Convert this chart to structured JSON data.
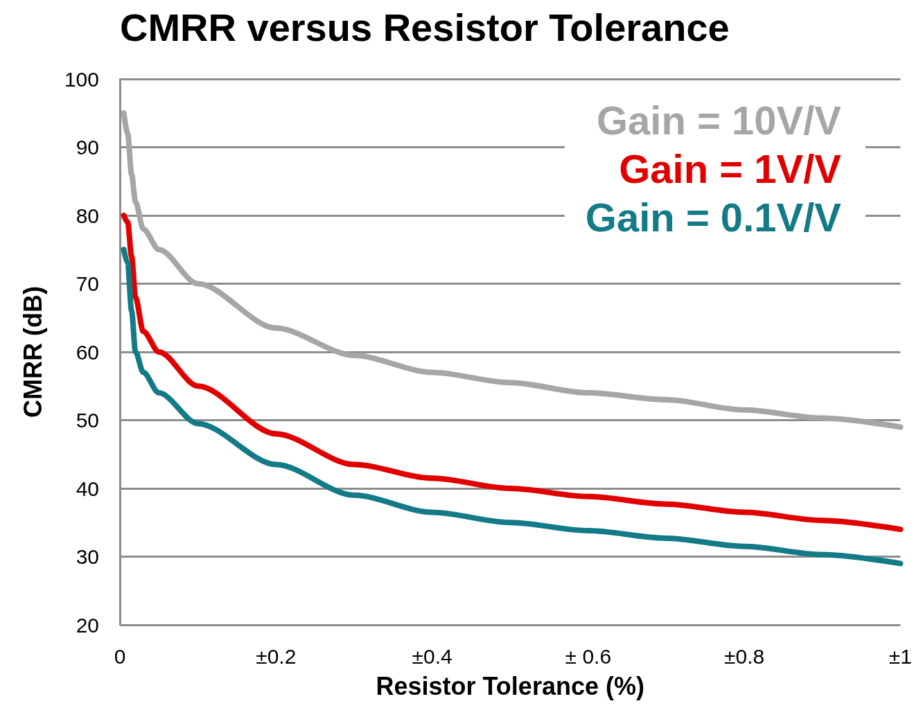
{
  "chart_data": {
    "type": "line",
    "title": "CMRR versus Resistor Tolerance",
    "xlabel": "Resistor Tolerance (%)",
    "ylabel": "CMRR (dB)",
    "xlim": [
      0,
      1
    ],
    "xticks": [
      0,
      {
        "value": 0.2,
        "label": "±0.2"
      },
      {
        "value": 0.4,
        "label": "±0.4"
      },
      {
        "value": 0.6,
        "label": "± 0.6"
      },
      {
        "value": 0.8,
        "label": "±0.8"
      },
      {
        "value": 1,
        "label": "±1"
      }
    ],
    "ylim": [
      20,
      100
    ],
    "yticks": [
      20,
      30,
      40,
      50,
      60,
      70,
      80,
      90,
      100
    ],
    "grid": "y",
    "legend": "top right",
    "marker": "none",
    "line_style": "solid",
    "series": [
      {
        "name": "Gain = 10V/V",
        "color": "#a6a6a6",
        "x": [
          0.005,
          0.01,
          0.015,
          0.02,
          0.03,
          0.05,
          0.1,
          0.2,
          0.3,
          0.4,
          0.5,
          0.6,
          0.7,
          0.8,
          0.9,
          1
        ],
        "values": [
          95,
          92,
          86,
          82,
          78,
          75,
          70,
          63.5,
          59.5,
          57,
          55.5,
          54,
          53,
          51.5,
          50.3,
          49
        ]
      },
      {
        "name": "Gain = 1V/V",
        "color": "#e00000",
        "x": [
          0.005,
          0.01,
          0.015,
          0.02,
          0.03,
          0.05,
          0.1,
          0.2,
          0.3,
          0.4,
          0.5,
          0.6,
          0.7,
          0.8,
          0.9,
          1
        ],
        "values": [
          80,
          79,
          74,
          68,
          63,
          60,
          55,
          48,
          43.5,
          41.5,
          40,
          38.8,
          37.7,
          36.5,
          35.3,
          34
        ]
      },
      {
        "name": "Gain = 0.1V/V",
        "color": "#137a87",
        "x": [
          0.005,
          0.01,
          0.015,
          0.02,
          0.03,
          0.05,
          0.1,
          0.2,
          0.3,
          0.4,
          0.5,
          0.6,
          0.7,
          0.8,
          0.9,
          1
        ],
        "values": [
          75,
          73,
          66,
          60,
          57,
          54,
          49.5,
          43.5,
          39,
          36.5,
          35,
          33.8,
          32.7,
          31.5,
          30.3,
          29
        ]
      }
    ]
  }
}
